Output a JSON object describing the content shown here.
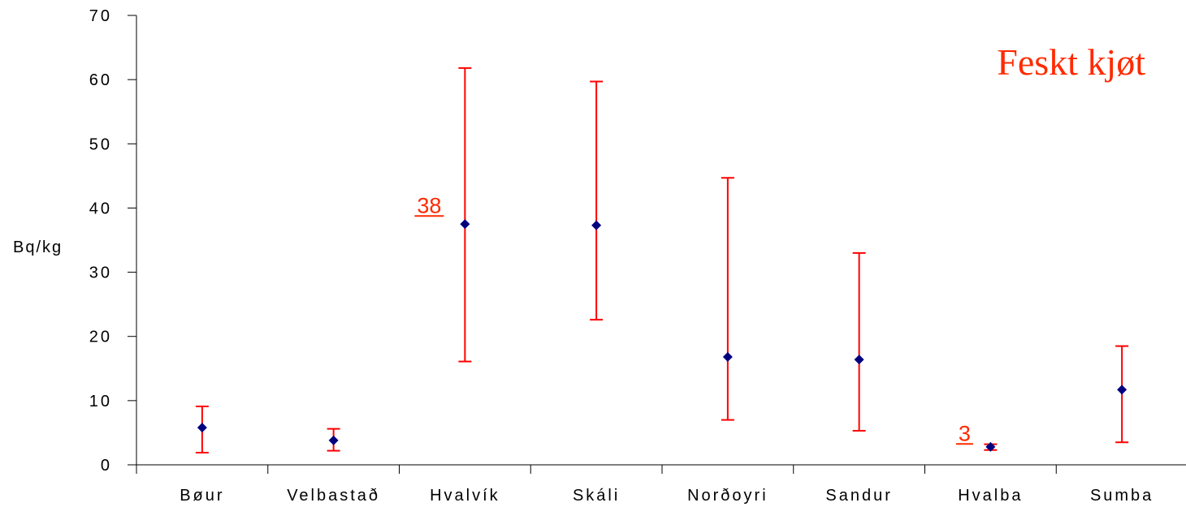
{
  "chart_data": {
    "type": "scatter",
    "title": "Feskt kjøt",
    "ylabel": "Bq/kg",
    "xlabel": "",
    "ylim": [
      0,
      70
    ],
    "yticks": [
      0,
      10,
      20,
      30,
      40,
      50,
      60,
      70
    ],
    "grid": false,
    "categories": [
      "Bøur",
      "Velbastað",
      "Hvalvík",
      "Skáli",
      "Norðoyri",
      "Sandur",
      "Hvalba",
      "Sumba"
    ],
    "values": [
      5.8,
      3.8,
      37.5,
      37.3,
      16.8,
      16.4,
      2.8,
      11.7
    ],
    "error_low": [
      1.9,
      2.2,
      16.1,
      22.6,
      7.0,
      5.3,
      2.3,
      3.5
    ],
    "error_high": [
      9.1,
      5.6,
      61.8,
      59.7,
      44.7,
      33.0,
      3.2,
      18.5
    ],
    "annotations": [
      {
        "category": "Hvalvík",
        "text": "38",
        "value": 38
      },
      {
        "category": "Hvalba",
        "text": "3",
        "value": 3
      }
    ],
    "colors": {
      "marker": "#00007F",
      "errorbar": "#FF0000",
      "title": "#FF2A00",
      "annotation": "#FF2A00",
      "axis": "#000000"
    }
  }
}
